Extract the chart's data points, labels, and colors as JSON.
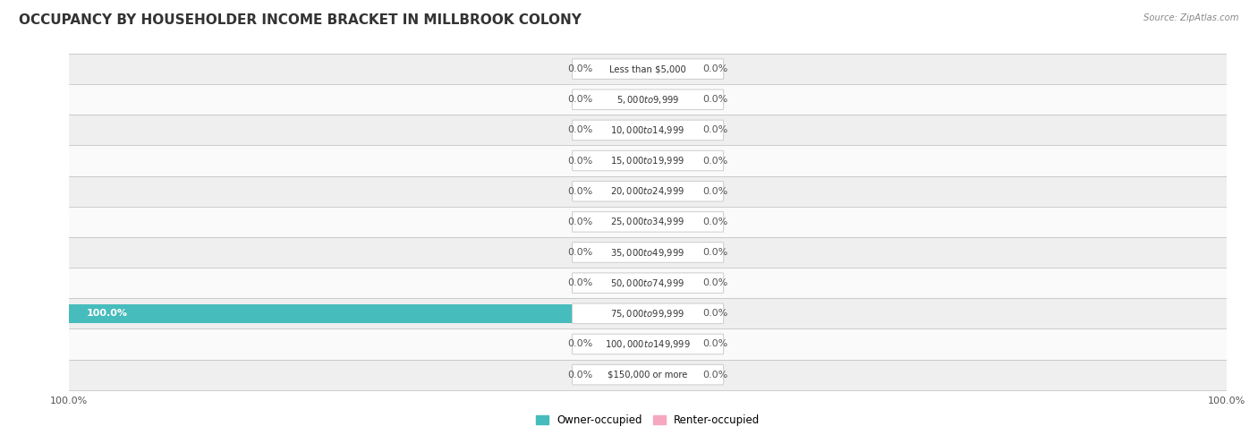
{
  "title": "OCCUPANCY BY HOUSEHOLDER INCOME BRACKET IN MILLBROOK COLONY",
  "source": "Source: ZipAtlas.com",
  "categories": [
    "Less than $5,000",
    "$5,000 to $9,999",
    "$10,000 to $14,999",
    "$15,000 to $19,999",
    "$20,000 to $24,999",
    "$25,000 to $34,999",
    "$35,000 to $49,999",
    "$50,000 to $74,999",
    "$75,000 to $99,999",
    "$100,000 to $149,999",
    "$150,000 or more"
  ],
  "owner_values": [
    0.0,
    0.0,
    0.0,
    0.0,
    0.0,
    0.0,
    0.0,
    0.0,
    100.0,
    0.0,
    0.0
  ],
  "renter_values": [
    0.0,
    0.0,
    0.0,
    0.0,
    0.0,
    0.0,
    0.0,
    0.0,
    0.0,
    0.0,
    0.0
  ],
  "owner_color": "#47bcbc",
  "renter_color": "#f5a8c0",
  "row_bg_color_light": "#efefef",
  "row_bg_color_white": "#fafafa",
  "label_color_dark": "#555555",
  "label_color_white": "#ffffff",
  "title_fontsize": 11,
  "label_fontsize": 8,
  "axis_label_fontsize": 8,
  "legend_fontsize": 8.5,
  "min_bar_width": 8,
  "fig_width": 14.06,
  "fig_height": 4.86,
  "dpi": 100
}
